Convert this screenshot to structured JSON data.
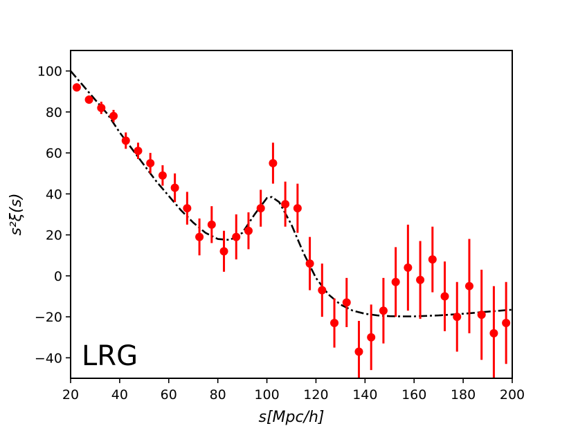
{
  "chart_data": {
    "type": "scatter",
    "title": "",
    "xlabel": "s[Mpc/h]",
    "ylabel": "s²ξ(s)",
    "annotation": "LRG",
    "xlim": [
      20,
      200
    ],
    "ylim": [
      -50,
      110
    ],
    "xticks": [
      20,
      40,
      60,
      80,
      100,
      120,
      140,
      160,
      180,
      200
    ],
    "yticks": [
      -40,
      -20,
      0,
      20,
      40,
      60,
      80,
      100
    ],
    "grid": false,
    "legend": "none",
    "colors": {
      "points": "#ff0000",
      "errorbars": "#ff0000",
      "model": "#000000"
    },
    "series": [
      {
        "kind": "points-with-errorbars",
        "x": [
          22.5,
          27.5,
          32.5,
          37.5,
          42.5,
          47.5,
          52.5,
          57.5,
          62.5,
          67.5,
          72.5,
          77.5,
          82.5,
          87.5,
          92.5,
          97.5,
          102.5,
          107.5,
          112.5,
          117.5,
          122.5,
          127.5,
          132.5,
          137.5,
          142.5,
          147.5,
          152.5,
          157.5,
          162.5,
          167.5,
          172.5,
          177.5,
          182.5,
          187.5,
          192.5,
          197.5
        ],
        "y": [
          92,
          86,
          82,
          78,
          66,
          61,
          55,
          49,
          43,
          33,
          19,
          25,
          12,
          19,
          22,
          33,
          55,
          35,
          33,
          6,
          -7,
          -23,
          -13,
          -37,
          -30,
          -17,
          -3,
          4,
          -2,
          8,
          -10,
          -20,
          -5,
          -19,
          -28,
          -23
        ],
        "err": [
          2,
          2,
          3,
          3,
          4,
          4,
          5,
          5,
          7,
          8,
          9,
          9,
          10,
          11,
          9,
          9,
          10,
          11,
          12,
          13,
          13,
          12,
          12,
          15,
          16,
          16,
          17,
          21,
          19,
          16,
          17,
          17,
          23,
          22,
          23,
          20
        ]
      },
      {
        "kind": "model-line",
        "linestyle": "dash-dot",
        "x": [
          20,
          25,
          30,
          35,
          40,
          45,
          50,
          55,
          60,
          65,
          70,
          75,
          80,
          85,
          90,
          95,
          100,
          102,
          105,
          110,
          115,
          120,
          125,
          130,
          135,
          140,
          145,
          150,
          155,
          160,
          170,
          180,
          190,
          200
        ],
        "y": [
          100,
          93,
          86,
          79,
          70,
          62,
          54,
          46,
          39,
          32,
          26,
          21,
          18,
          17.5,
          21,
          30,
          38,
          38.5,
          36,
          25,
          11,
          -1,
          -9,
          -14,
          -17,
          -18.5,
          -19.3,
          -19.7,
          -19.8,
          -19.8,
          -19.3,
          -18.5,
          -17.5,
          -16.5
        ]
      }
    ]
  }
}
